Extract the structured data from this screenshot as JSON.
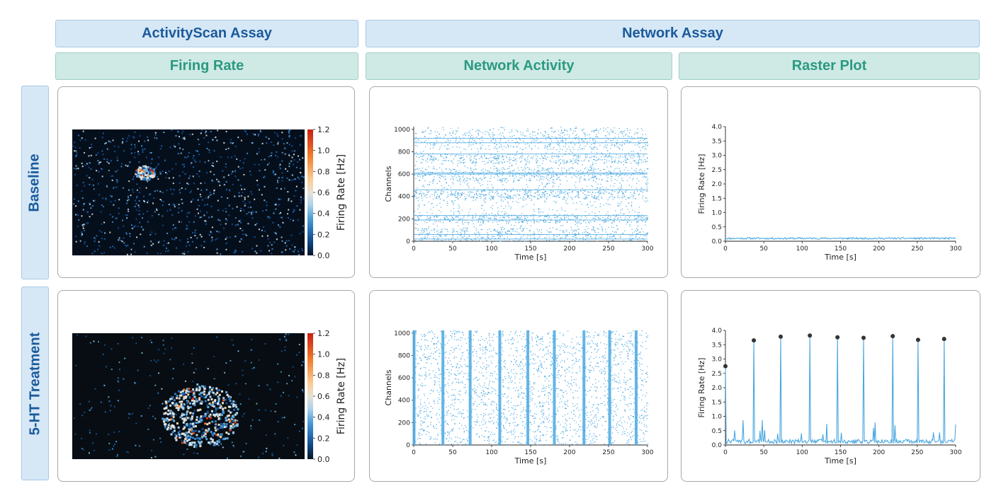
{
  "headers": {
    "activityscan": "ActivityScan Assay",
    "network": "Network Assay",
    "firing_rate": "Firing Rate",
    "network_activity": "Network Activity",
    "raster_plot": "Raster Plot"
  },
  "rows": {
    "baseline": "Baseline",
    "treatment": "5-HT Treatment"
  },
  "colors": {
    "assay_fill": "#d6e8f6",
    "assay_text": "#1b5a9c",
    "sub_fill": "#cfe9e5",
    "sub_text": "#2a9a80",
    "trace": "#4aa8e0",
    "peak_marker": "#333333"
  },
  "chart_data": [
    {
      "id": "heatmap-baseline",
      "type": "heatmap",
      "title": "Firing Rate",
      "colorbar": {
        "label": "Firing Rate [Hz]",
        "min": 0.0,
        "max": 1.2,
        "ticks": [
          "0.0",
          "0.2",
          "0.4",
          "0.6",
          "0.8",
          "1.0",
          "1.2"
        ]
      },
      "description_level": "sparse background activity with one small active cluster"
    },
    {
      "id": "raster-baseline",
      "type": "scatter",
      "title": "Network Activity",
      "xlabel": "Time [s]",
      "ylabel": "Channels",
      "xlim": [
        0,
        300
      ],
      "ylim": [
        0,
        1024
      ],
      "xticks": [
        "0",
        "50",
        "100",
        "150",
        "200",
        "250",
        "300"
      ],
      "yticks": [
        "0",
        "200",
        "400",
        "600",
        "800",
        "1000"
      ],
      "bursts": []
    },
    {
      "id": "rate-baseline",
      "type": "line",
      "title": "Raster Plot",
      "xlabel": "Time [s]",
      "ylabel": "Firing Rate [Hz]",
      "xlim": [
        0,
        300
      ],
      "ylim": [
        0,
        4.0
      ],
      "xticks": [
        "0",
        "50",
        "100",
        "150",
        "200",
        "250",
        "300"
      ],
      "yticks": [
        "0.0",
        "0.5",
        "1.0",
        "1.5",
        "2.0",
        "2.5",
        "3.0",
        "3.5",
        "4.0"
      ],
      "baseline_level": 0.1,
      "peaks": []
    },
    {
      "id": "heatmap-treatment",
      "type": "heatmap",
      "title": "Firing Rate",
      "colorbar": {
        "label": "Firing Rate [Hz]",
        "min": 0.0,
        "max": 1.2,
        "ticks": [
          "0.0",
          "0.2",
          "0.4",
          "0.6",
          "0.8",
          "1.0",
          "1.2"
        ]
      },
      "description_level": "dark background with a larger active cluster"
    },
    {
      "id": "raster-treatment",
      "type": "scatter",
      "title": "Network Activity",
      "xlabel": "Time [s]",
      "ylabel": "Channels",
      "xlim": [
        0,
        300
      ],
      "ylim": [
        0,
        1024
      ],
      "xticks": [
        "0",
        "50",
        "100",
        "150",
        "200",
        "250",
        "300"
      ],
      "yticks": [
        "0",
        "200",
        "400",
        "600",
        "800",
        "1000"
      ],
      "bursts": [
        0,
        37,
        72,
        110,
        146,
        180,
        218,
        251,
        285
      ]
    },
    {
      "id": "rate-treatment",
      "type": "line",
      "title": "Raster Plot",
      "xlabel": "Time [s]",
      "ylabel": "Firing Rate [Hz]",
      "xlim": [
        0,
        300
      ],
      "ylim": [
        0,
        4.0
      ],
      "xticks": [
        "0",
        "50",
        "100",
        "150",
        "200",
        "250",
        "300"
      ],
      "yticks": [
        "0.0",
        "0.5",
        "1.0",
        "1.5",
        "2.0",
        "2.5",
        "3.0",
        "3.5",
        "4.0"
      ],
      "baseline_level": 0.1,
      "peaks": [
        {
          "x": 0,
          "y": 2.75
        },
        {
          "x": 37,
          "y": 3.65
        },
        {
          "x": 72,
          "y": 3.78
        },
        {
          "x": 110,
          "y": 3.82
        },
        {
          "x": 146,
          "y": 3.76
        },
        {
          "x": 180,
          "y": 3.74
        },
        {
          "x": 218,
          "y": 3.8
        },
        {
          "x": 251,
          "y": 3.67
        },
        {
          "x": 285,
          "y": 3.7
        }
      ]
    }
  ]
}
